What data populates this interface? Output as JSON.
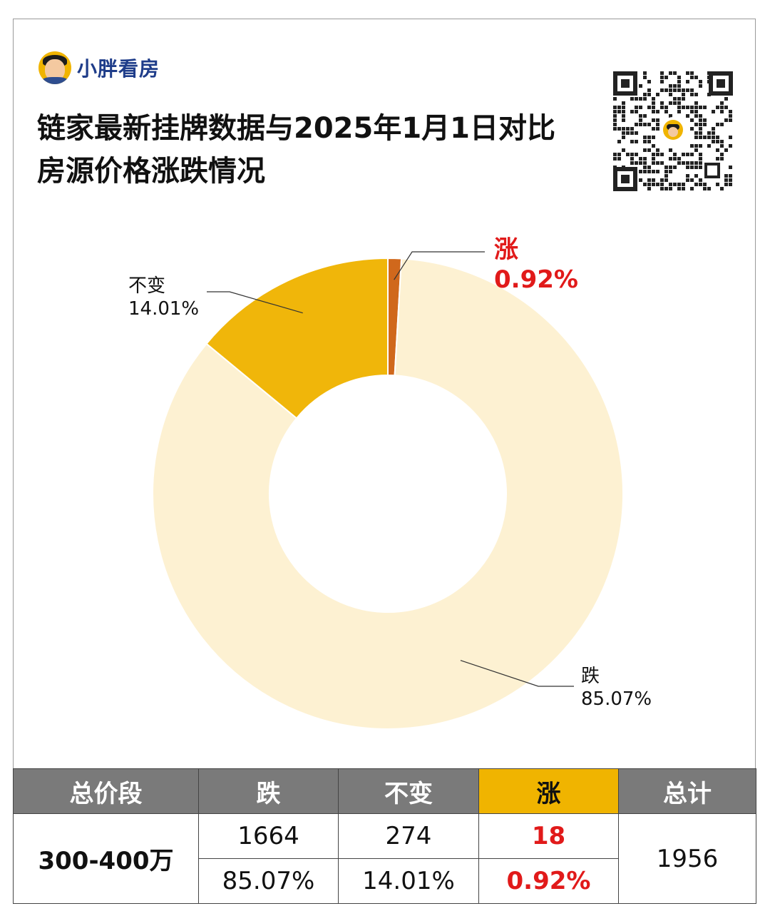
{
  "brand": {
    "name": "小胖看房",
    "avatar_icon": "avatar-icon"
  },
  "title": {
    "line1": "链家最新挂牌数据与2025年1月1日对比",
    "line2": "房源价格涨跌情况"
  },
  "qr_code": {
    "icon": "qr-code-icon"
  },
  "chart_data": {
    "type": "pie",
    "title": "链家最新挂牌数据与2025年1月1日对比房源价格涨跌情况",
    "donut": true,
    "slices": [
      {
        "label": "涨",
        "value": 0.92,
        "value_label": "0.92%",
        "color": "#d0681c"
      },
      {
        "label": "跌",
        "value": 85.07,
        "value_label": "85.07%",
        "color": "#fdf1d2"
      },
      {
        "label": "不变",
        "value": 14.01,
        "value_label": "14.01%",
        "color": "#f0b60a"
      }
    ],
    "start_angle_deg": 0,
    "direction": "clockwise",
    "highlight_color": "#e11a1a"
  },
  "table": {
    "headers": [
      "总价段",
      "跌",
      "不变",
      "涨",
      "总计"
    ],
    "range": "300-400万",
    "counts": {
      "fall": "1664",
      "same": "274",
      "rise": "18"
    },
    "percents": {
      "fall": "85.07%",
      "same": "14.01%",
      "rise": "0.92%"
    },
    "total": "1956"
  }
}
